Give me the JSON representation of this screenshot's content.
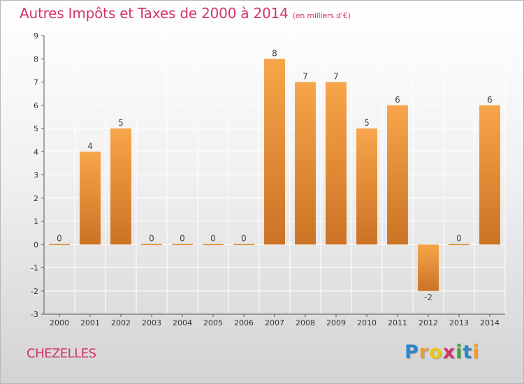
{
  "header": {
    "title": "Autres Impôts et Taxes de 2000 à 2014",
    "unit": "(en milliers d'€)"
  },
  "footer": {
    "city": "CHEZELLES",
    "logo_letters": [
      "P",
      "r",
      "o",
      "x",
      "i",
      "t",
      "i"
    ]
  },
  "chart_data": {
    "type": "bar",
    "title": "Autres Impôts et Taxes de 2000 à 2014",
    "subtitle": "(en milliers d'€)",
    "categories": [
      "2000",
      "2001",
      "2002",
      "2003",
      "2004",
      "2005",
      "2006",
      "2007",
      "2008",
      "2009",
      "2010",
      "2011",
      "2012",
      "2013",
      "2014"
    ],
    "values": [
      0,
      4,
      5,
      0,
      0,
      0,
      0,
      8,
      7,
      7,
      5,
      6,
      -2,
      0,
      6
    ],
    "value_labels": [
      "0",
      "4",
      "5",
      "0",
      "0",
      "0",
      "0",
      "8",
      "7",
      "7",
      "5",
      "6",
      "-2",
      "0",
      "6"
    ],
    "ylim": [
      -3,
      9
    ],
    "yticks": [
      -3,
      -2,
      -1,
      0,
      1,
      2,
      3,
      4,
      5,
      6,
      7,
      8,
      9
    ],
    "grid": true,
    "colors": {
      "bar_top": "#f7a54a",
      "bar_bottom": "#cc7224",
      "grid": "#ffffff"
    }
  }
}
